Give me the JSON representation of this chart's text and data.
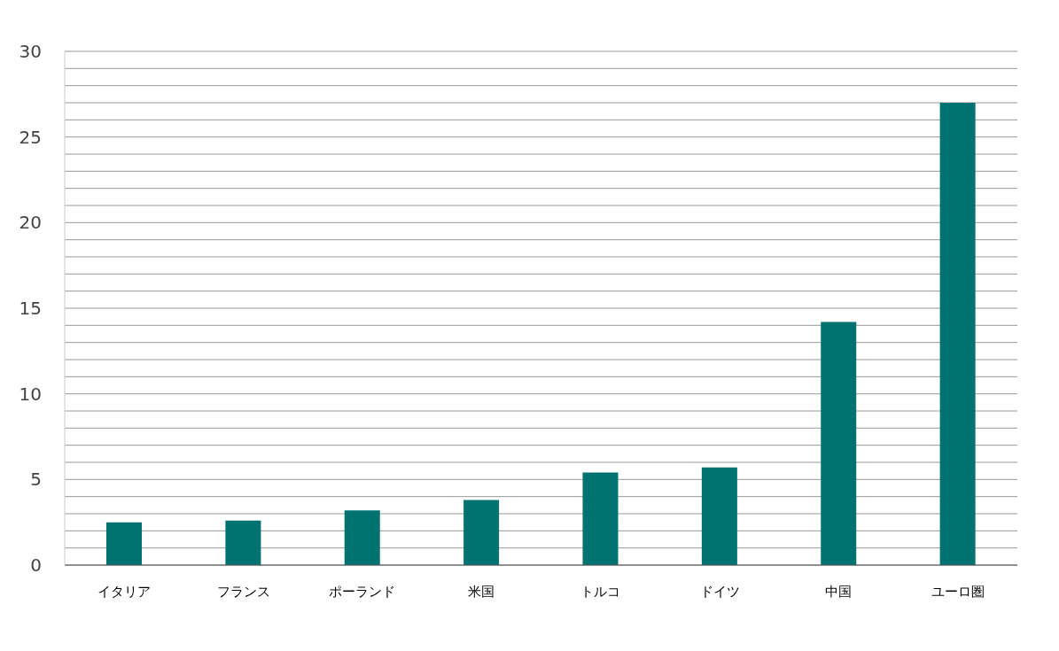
{
  "chart_data": {
    "type": "bar",
    "categories": [
      "イタリア",
      "フランス",
      "ポーランド",
      "米国",
      "トルコ",
      "ドイツ",
      "中国",
      "ユーロ圏"
    ],
    "values": [
      2.5,
      2.6,
      3.2,
      3.8,
      5.4,
      5.7,
      14.2,
      27.0
    ],
    "color": "#007370",
    "ylim": [
      0,
      30
    ],
    "yticks": [
      0,
      {
        "value": 1,
        "label": null
      },
      {
        "value": 2,
        "label": null
      },
      {
        "value": 3,
        "label": null
      },
      {
        "value": 4,
        "label": null
      },
      5,
      {
        "value": 6,
        "label": null
      },
      {
        "value": 7,
        "label": null
      },
      {
        "value": 8,
        "label": null
      },
      {
        "value": 9,
        "label": null
      },
      10,
      {
        "value": 11,
        "label": null
      },
      {
        "value": 12,
        "label": null
      },
      {
        "value": 13,
        "label": null
      },
      {
        "value": 14,
        "label": null
      },
      15,
      {
        "value": 16,
        "label": null
      },
      {
        "value": 17,
        "label": null
      },
      {
        "value": 18,
        "label": null
      },
      {
        "value": 19,
        "label": null
      },
      20,
      {
        "value": 21,
        "label": null
      },
      {
        "value": 22,
        "label": null
      },
      {
        "value": 23,
        "label": null
      },
      {
        "value": 24,
        "label": null
      },
      25,
      {
        "value": 26,
        "label": null
      },
      {
        "value": 27,
        "label": null
      },
      {
        "value": 28,
        "label": null
      },
      {
        "value": 29,
        "label": null
      },
      30
    ],
    "grid": "y"
  }
}
